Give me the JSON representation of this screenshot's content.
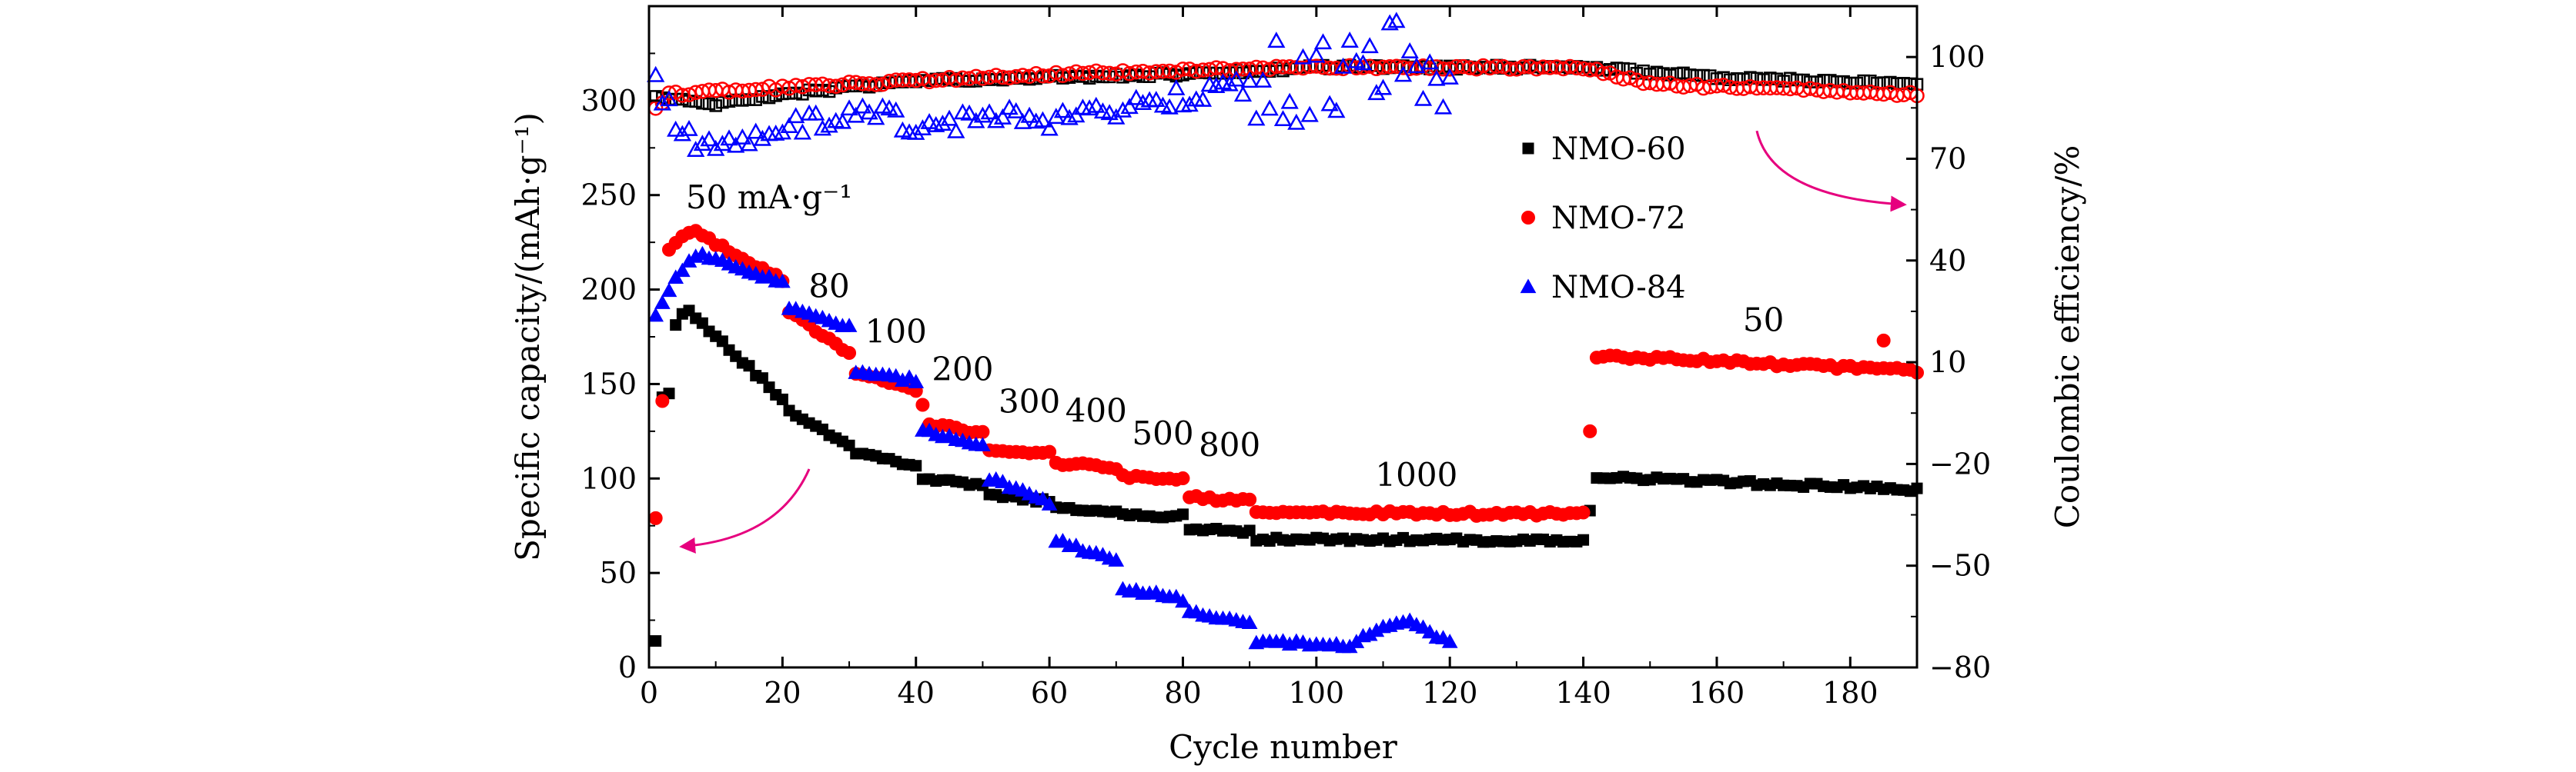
{
  "chart_data": {
    "type": "scatter",
    "xlabel": "Cycle number",
    "ylabel": "Specific capacity/(mAh·g⁻¹)",
    "y2label": "Coulombic efficiency/%",
    "xlim": [
      0,
      190
    ],
    "ylim": [
      0,
      350
    ],
    "y2lim": [
      -80,
      115
    ],
    "xticks": [
      0,
      20,
      40,
      60,
      80,
      100,
      120,
      140,
      160,
      180
    ],
    "yticks": [
      0,
      50,
      100,
      150,
      200,
      250,
      300
    ],
    "y2ticks": [
      -80,
      -50,
      -20,
      10,
      40,
      70,
      100
    ],
    "legend": {
      "position": "right-center",
      "entries": [
        {
          "name": "NMO-60",
          "marker": "square",
          "color": "#000000"
        },
        {
          "name": "NMO-72",
          "marker": "circle",
          "color": "#ff0000"
        },
        {
          "name": "NMO-84",
          "marker": "triangle",
          "color": "#0000ff"
        }
      ]
    },
    "rate_labels": [
      {
        "text": "50 mA·g⁻¹",
        "x": 18,
        "y": 243
      },
      {
        "text": "80",
        "x": 27,
        "y": 196
      },
      {
        "text": "100",
        "x": 37,
        "y": 172
      },
      {
        "text": "200",
        "x": 47,
        "y": 152
      },
      {
        "text": "300",
        "x": 57,
        "y": 135
      },
      {
        "text": "400",
        "x": 67,
        "y": 130
      },
      {
        "text": "500",
        "x": 77,
        "y": 118
      },
      {
        "text": "800",
        "x": 87,
        "y": 112
      },
      {
        "text": "1000",
        "x": 115,
        "y": 96
      },
      {
        "text": "50",
        "x": 167,
        "y": 178
      }
    ],
    "capacity_series": [
      {
        "name": "NMO-60",
        "segments": [
          {
            "from": 4,
            "to": 20,
            "start": 182,
            "end": 142,
            "peak_at": 6,
            "peak": 189
          },
          {
            "from": 21,
            "to": 30,
            "start": 135,
            "end": 118
          },
          {
            "from": 31,
            "to": 40,
            "start": 114,
            "end": 107
          },
          {
            "from": 41,
            "to": 50,
            "start": 100,
            "end": 96
          },
          {
            "from": 51,
            "to": 60,
            "start": 91,
            "end": 88
          },
          {
            "from": 61,
            "to": 70,
            "start": 84,
            "end": 82
          },
          {
            "from": 71,
            "to": 80,
            "start": 81,
            "end": 80
          },
          {
            "from": 81,
            "to": 90,
            "start": 73,
            "end": 72
          },
          {
            "from": 91,
            "to": 140,
            "start": 68,
            "end": 67
          },
          {
            "from": 142,
            "to": 190,
            "start": 101,
            "end": 94
          }
        ],
        "outliers": [
          [
            1,
            14
          ],
          [
            2,
            143
          ],
          [
            3,
            145
          ],
          [
            141,
            83
          ]
        ]
      },
      {
        "name": "NMO-72",
        "segments": [
          {
            "from": 3,
            "to": 20,
            "start": 222,
            "end": 205,
            "peak_at": 7,
            "peak": 230
          },
          {
            "from": 21,
            "to": 30,
            "start": 188,
            "end": 166
          },
          {
            "from": 31,
            "to": 40,
            "start": 156,
            "end": 147
          },
          {
            "from": 42,
            "to": 50,
            "start": 129,
            "end": 124
          },
          {
            "from": 51,
            "to": 60,
            "start": 115,
            "end": 113
          },
          {
            "from": 61,
            "to": 70,
            "start": 108,
            "end": 106
          },
          {
            "from": 71,
            "to": 80,
            "start": 101,
            "end": 100
          },
          {
            "from": 81,
            "to": 90,
            "start": 90,
            "end": 88
          },
          {
            "from": 91,
            "to": 140,
            "start": 82,
            "end": 81
          },
          {
            "from": 142,
            "to": 190,
            "start": 165,
            "end": 157
          }
        ],
        "outliers": [
          [
            1,
            79
          ],
          [
            2,
            141
          ],
          [
            41,
            139
          ],
          [
            141,
            125
          ],
          [
            185,
            173
          ]
        ]
      },
      {
        "name": "NMO-84",
        "segments": [
          {
            "from": 1,
            "to": 20,
            "start": 186,
            "end": 204,
            "peak_at": 8,
            "peak": 218
          },
          {
            "from": 21,
            "to": 30,
            "start": 190,
            "end": 180
          },
          {
            "from": 31,
            "to": 40,
            "start": 156,
            "end": 152
          },
          {
            "from": 41,
            "to": 50,
            "start": 126,
            "end": 117
          },
          {
            "from": 51,
            "to": 60,
            "start": 100,
            "end": 87
          },
          {
            "from": 61,
            "to": 70,
            "start": 67,
            "end": 57
          },
          {
            "from": 71,
            "to": 80,
            "start": 42,
            "end": 36
          },
          {
            "from": 81,
            "to": 90,
            "start": 29,
            "end": 24
          },
          {
            "from": 91,
            "to": 105,
            "start": 14,
            "end": 11
          },
          {
            "from": 106,
            "to": 120,
            "start": 14,
            "end": 13,
            "peak_at": 114,
            "peak": 24
          }
        ],
        "outliers": []
      }
    ],
    "efficiency_series": [
      {
        "name": "NMO-60",
        "points": [
          [
            1,
            88
          ],
          [
            10,
            86
          ],
          [
            20,
            89
          ],
          [
            40,
            93
          ],
          [
            60,
            94
          ],
          [
            80,
            95
          ],
          [
            100,
            97
          ],
          [
            140,
            97
          ],
          [
            160,
            94
          ],
          [
            190,
            92
          ]
        ]
      },
      {
        "name": "NMO-72",
        "points": [
          [
            1,
            85
          ],
          [
            3,
            89
          ],
          [
            20,
            91
          ],
          [
            40,
            93
          ],
          [
            60,
            95
          ],
          [
            80,
            96
          ],
          [
            100,
            97
          ],
          [
            140,
            97
          ],
          [
            150,
            92
          ],
          [
            190,
            89
          ]
        ]
      },
      {
        "name": "NMO-84",
        "points": [
          [
            1,
            93
          ],
          [
            5,
            76
          ],
          [
            10,
            73
          ],
          [
            20,
            79
          ],
          [
            30,
            83
          ],
          [
            40,
            81
          ],
          [
            60,
            82
          ],
          [
            80,
            88
          ],
          [
            90,
            91
          ],
          [
            100,
            93
          ],
          [
            110,
            102
          ],
          [
            120,
            94
          ]
        ]
      }
    ],
    "arrows": [
      {
        "from": [
          24,
          105
        ],
        "to": [
          5,
          64
        ],
        "color": "#e6007e"
      },
      {
        "from": [
          166,
          284
        ],
        "to": [
          188,
          245
        ],
        "color": "#e6007e"
      }
    ]
  }
}
